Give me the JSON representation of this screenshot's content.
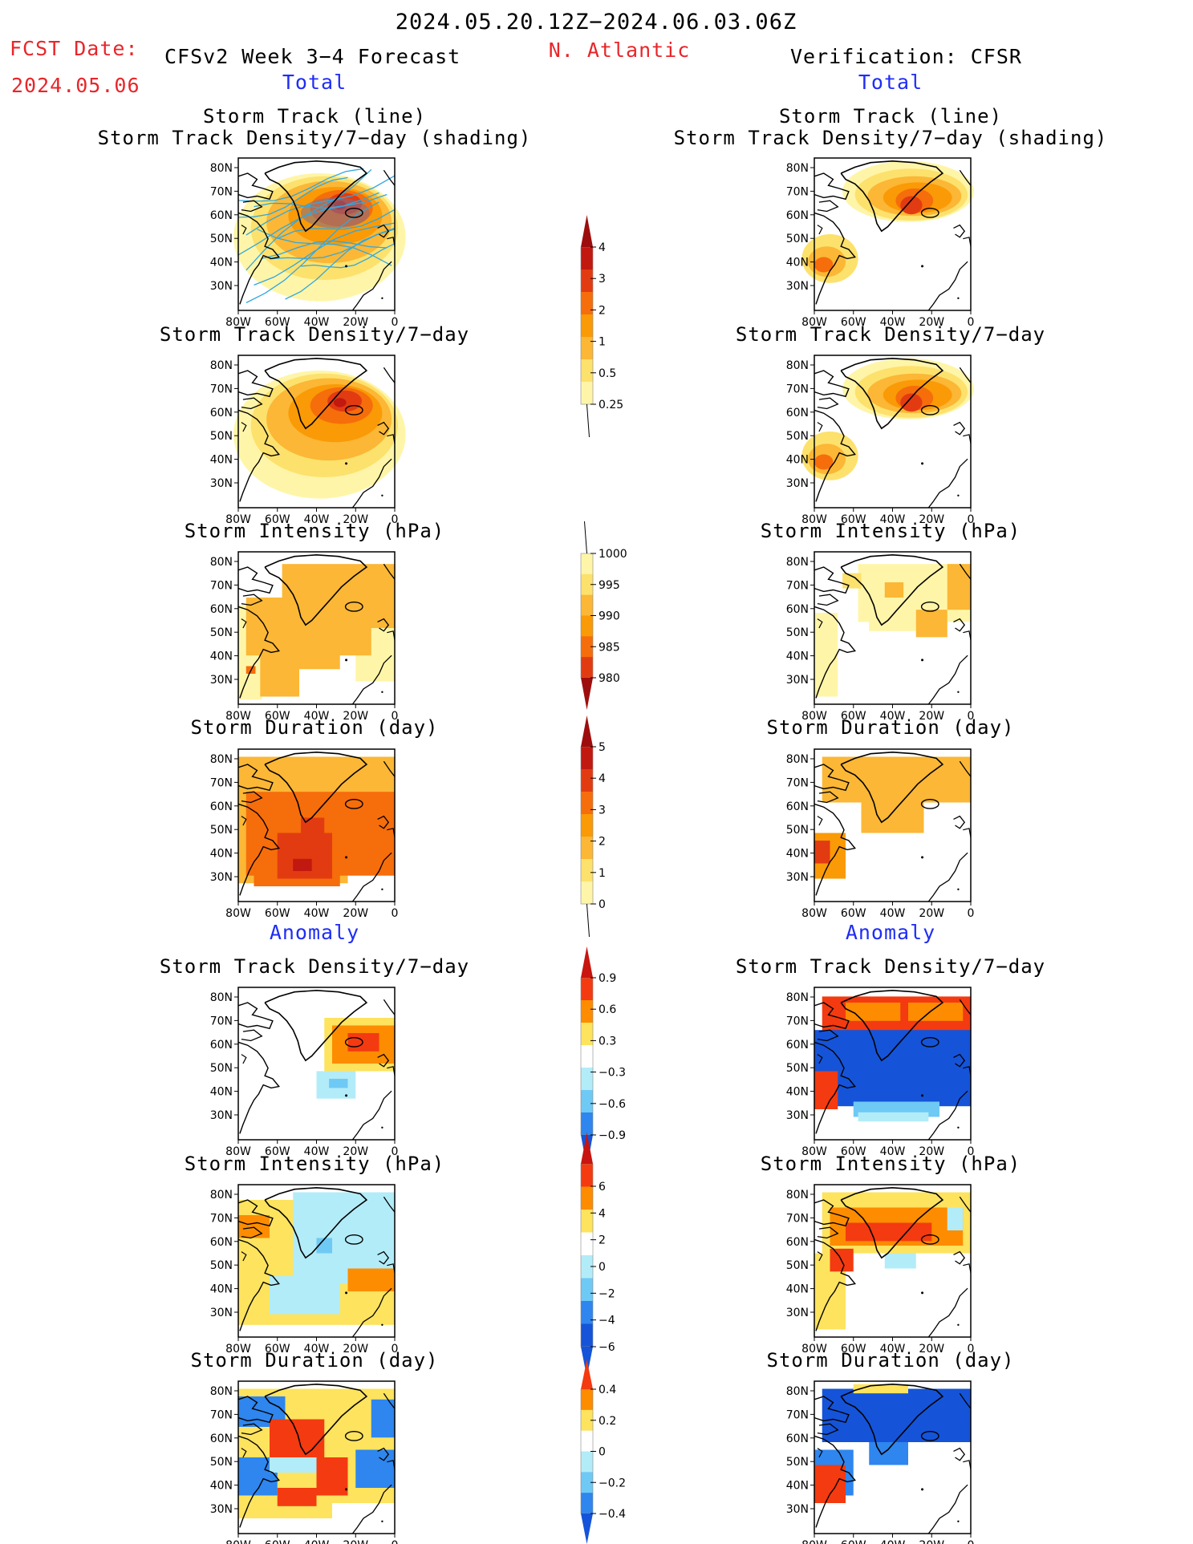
{
  "header": {
    "period": "2024.05.20.12Z−2024.06.03.06Z",
    "fcst_label": "FCST Date:",
    "fcst_date": "2024.05.06",
    "model": "CFSv2 Week 3−4 Forecast",
    "region": "N. Atlantic",
    "verification": "Verification: CFSR",
    "total_left": "Total",
    "total_right": "Total",
    "anomaly_left": "Anomaly",
    "anomaly_right": "Anomaly"
  },
  "panel_titles": {
    "p1a": "Storm Track (line)",
    "p1b": "Storm Track Density/7−day (shading)",
    "p2": "Storm Track Density/7−day",
    "p3": "Storm Intensity (hPa)",
    "p4": "Storm Duration (day)",
    "p5": "Storm Track Density/7−day",
    "p6": "Storm Intensity (hPa)",
    "p7": "Storm Duration (day)"
  },
  "map_axes": {
    "lat_labels": [
      "80N",
      "70N",
      "60N",
      "50N",
      "40N",
      "30N"
    ],
    "lon_labels": [
      "80W",
      "60W",
      "40W",
      "20W",
      "0"
    ]
  },
  "colors": {
    "warm": [
      "#fff5a8",
      "#fde16d",
      "#fbb735",
      "#fa9a06",
      "#f66d0b",
      "#e23b12",
      "#c11810",
      "#9e0d0d"
    ],
    "anom": [
      "#c8150f",
      "#f43a10",
      "#fd8c00",
      "#fde35e",
      "#ffffff",
      "#b2ecf8",
      "#6fc9f5",
      "#2e86ee",
      "#1554d8"
    ],
    "track_line": "#33a7dc",
    "density_grey": "#7b6f8f"
  },
  "colorbars": [
    {
      "name": "density-total",
      "labels": [
        "4",
        "3",
        "2",
        "1",
        "0.5",
        "0.25"
      ]
    },
    {
      "name": "intensity-total",
      "labels": [
        "1000",
        "995",
        "990",
        "985",
        "980"
      ]
    },
    {
      "name": "duration-total",
      "labels": [
        "5",
        "4",
        "3",
        "2",
        "1",
        "0"
      ]
    },
    {
      "name": "density-anomaly",
      "labels": [
        "0.9",
        "0.6",
        "0.3",
        "−0.3",
        "−0.6",
        "−0.9"
      ]
    },
    {
      "name": "intensity-anomaly",
      "labels": [
        "6",
        "4",
        "2",
        "0",
        "−2",
        "−4",
        "−6"
      ]
    },
    {
      "name": "duration-anomaly",
      "labels": [
        "0.4",
        "0.2",
        "0",
        "−0.2",
        "−0.4"
      ]
    }
  ]
}
